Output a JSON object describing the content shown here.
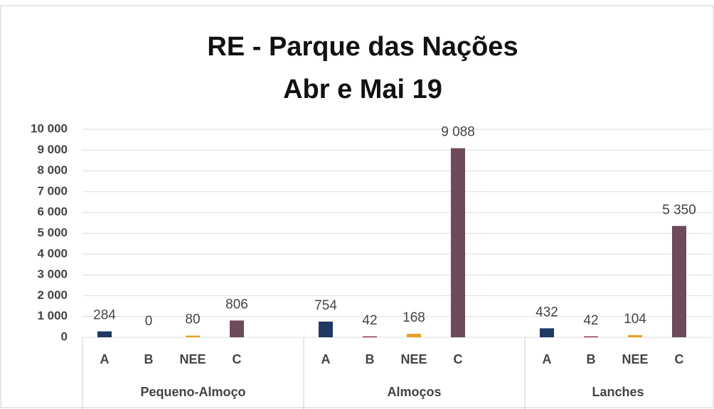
{
  "chart_data": {
    "type": "bar",
    "title": [
      "RE - Parque das Nações",
      "Abr e Mai 19"
    ],
    "categories": [
      "Pequeno-Almoço",
      "Almoços",
      "Lanches"
    ],
    "series": [
      {
        "name": "A",
        "color": "#1f3864",
        "values": [
          284,
          754,
          432
        ]
      },
      {
        "name": "B",
        "color": "#8b1a2b",
        "values": [
          0,
          42,
          42
        ]
      },
      {
        "name": "NEE",
        "color": "#e6a020",
        "values": [
          80,
          168,
          104
        ]
      },
      {
        "name": "C",
        "color": "#6e4a5a",
        "values": [
          806,
          9088,
          5350
        ],
        "value_labels": [
          "806",
          "9 088",
          "5 350"
        ]
      }
    ],
    "ylim": [
      0,
      10000
    ],
    "yticks": [
      0,
      {
        "value": 1000,
        "label": "1 000"
      },
      {
        "value": 2000,
        "label": "2 000"
      },
      {
        "value": 3000,
        "label": "3 000"
      },
      {
        "value": 4000,
        "label": "4 000"
      },
      {
        "value": 5000,
        "label": "5 000"
      },
      {
        "value": 6000,
        "label": "6 000"
      },
      {
        "value": 7000,
        "label": "7 000"
      },
      {
        "value": 8000,
        "label": "8 000"
      },
      {
        "value": 9000,
        "label": "9 000"
      },
      {
        "value": 10000,
        "label": "10 000"
      }
    ],
    "grid": true
  }
}
